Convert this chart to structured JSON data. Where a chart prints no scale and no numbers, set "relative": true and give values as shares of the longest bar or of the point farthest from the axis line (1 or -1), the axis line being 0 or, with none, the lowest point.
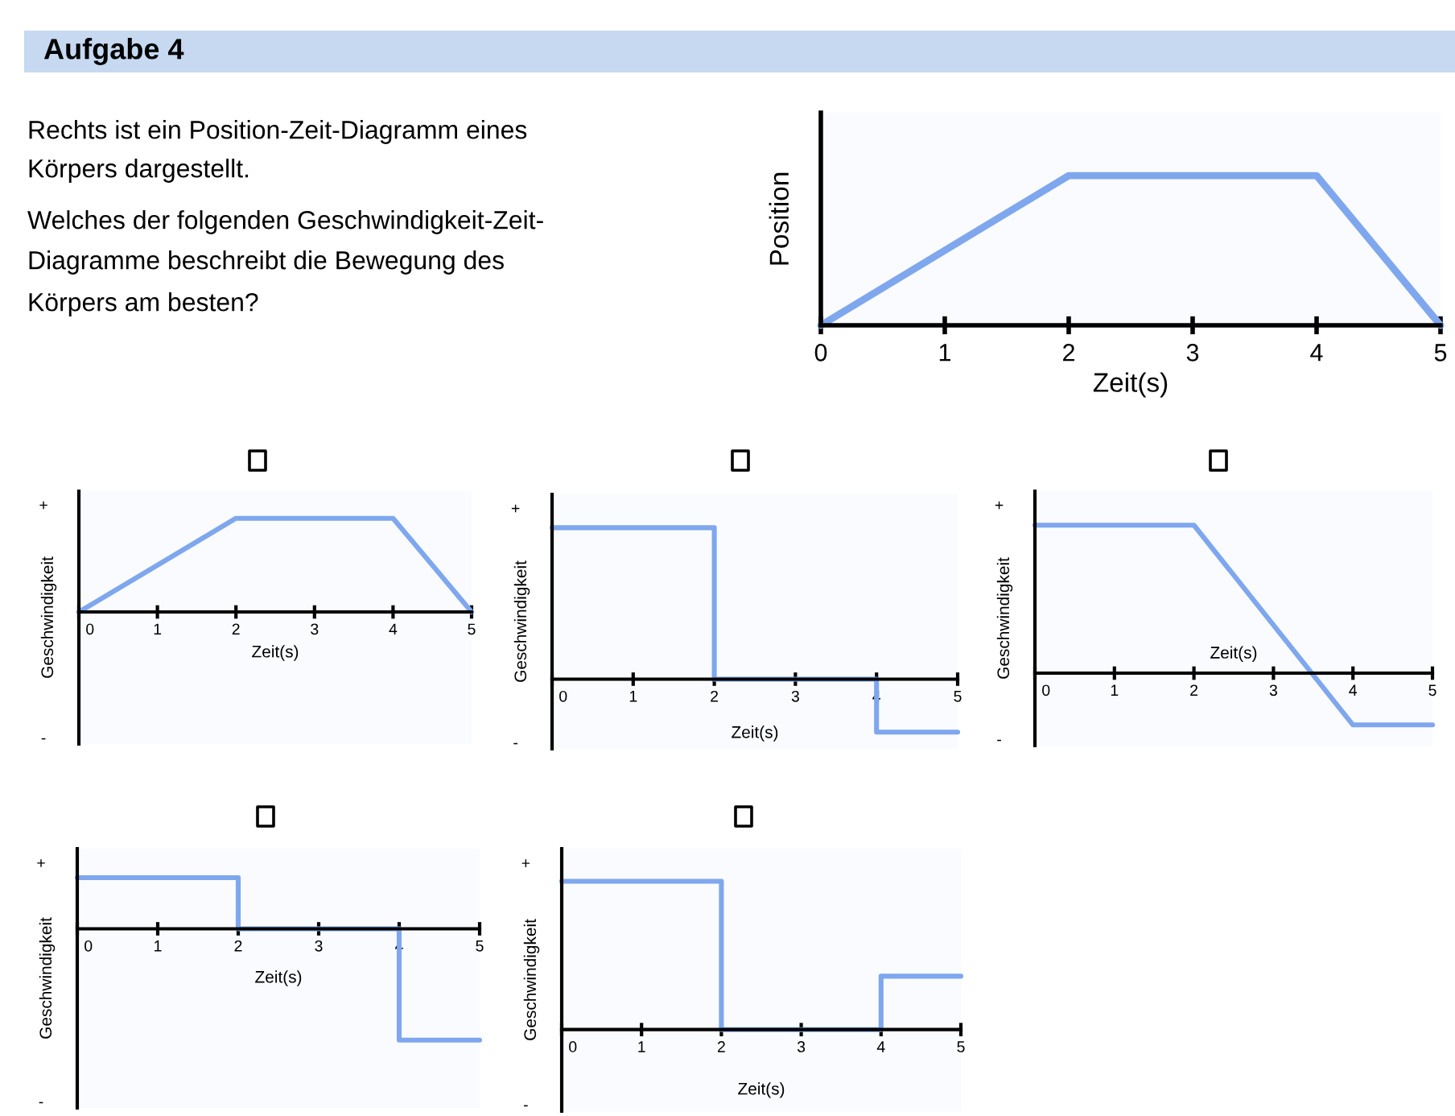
{
  "chart_data": [
    {
      "type": "other",
      "title": "Aufgabe 4",
      "annotations": [
        "Rechts ist ein Position-Zeit-Diagramm eines",
        "Körpers dargestellt.",
        "Welches der folgenden Geschwindigkeit-Zeit-",
        "Diagramme beschreibt die Bewegung des",
        "Körpers am besten?"
      ]
    },
    {
      "type": "line",
      "relative": true,
      "x": [
        0,
        2,
        4,
        5
      ],
      "xlim": [
        0,
        5
      ],
      "xticks": [
        0,
        1,
        2,
        3,
        4,
        5
      ],
      "xlabel": "Zeit(s)",
      "ylabel": "Position",
      "series": [
        {
          "color": "#7fa7ee",
          "values": [
            0,
            1,
            1,
            0
          ]
        }
      ]
    },
    {
      "type": "line",
      "relative": true,
      "x": [
        0,
        2,
        4,
        5
      ],
      "xlim": [
        0,
        5
      ],
      "xticks": [
        0,
        1,
        2,
        3,
        4,
        5
      ],
      "xlabel": "Zeit(s)",
      "ylabel": "Geschwindigkeit",
      "annotations": [
        "+",
        "-"
      ],
      "series": [
        {
          "color": "#7fa7ee",
          "values": [
            0,
            1,
            1,
            0
          ]
        }
      ]
    },
    {
      "type": "line",
      "relative": true,
      "x": [
        0,
        2,
        2,
        4,
        4,
        5
      ],
      "xlim": [
        0,
        5
      ],
      "xticks": [
        0,
        1,
        2,
        3,
        4,
        5
      ],
      "xlabel": "Zeit(s)",
      "ylabel": "Geschwindigkeit",
      "annotations": [
        "+",
        "-"
      ],
      "series": [
        {
          "color": "#7fa7ee",
          "values": [
            1,
            1,
            0,
            0,
            -0.35,
            -0.35
          ]
        }
      ]
    },
    {
      "type": "line",
      "relative": true,
      "x": [
        0,
        2,
        4,
        5
      ],
      "xlim": [
        0,
        5
      ],
      "xticks": [
        0,
        1,
        2,
        3,
        4,
        5
      ],
      "xlabel": "Zeit(s)",
      "ylabel": "Geschwindigkeit",
      "annotations": [
        "+",
        "-"
      ],
      "series": [
        {
          "color": "#7fa7ee",
          "values": [
            1,
            1,
            -0.35,
            -0.35
          ]
        }
      ]
    },
    {
      "type": "line",
      "relative": true,
      "x": [
        0,
        2,
        2,
        4,
        4,
        5
      ],
      "xlim": [
        0,
        5
      ],
      "xticks": [
        0,
        1,
        2,
        3,
        4,
        5
      ],
      "xlabel": "Zeit(s)",
      "ylabel": "Geschwindigkeit",
      "annotations": [
        "+",
        "-"
      ],
      "series": [
        {
          "color": "#7fa7ee",
          "values": [
            0.46,
            0.46,
            0,
            0,
            -1,
            -1
          ]
        }
      ]
    },
    {
      "type": "line",
      "relative": true,
      "x": [
        0,
        2,
        2,
        4,
        4,
        5
      ],
      "xlim": [
        0,
        5
      ],
      "xticks": [
        0,
        1,
        2,
        3,
        4,
        5
      ],
      "xlabel": "Zeit(s)",
      "ylabel": "Geschwindigkeit",
      "annotations": [
        "+",
        "-"
      ],
      "series": [
        {
          "color": "#7fa7ee",
          "values": [
            1,
            1,
            0,
            0,
            0.36,
            0.36
          ]
        }
      ]
    }
  ]
}
